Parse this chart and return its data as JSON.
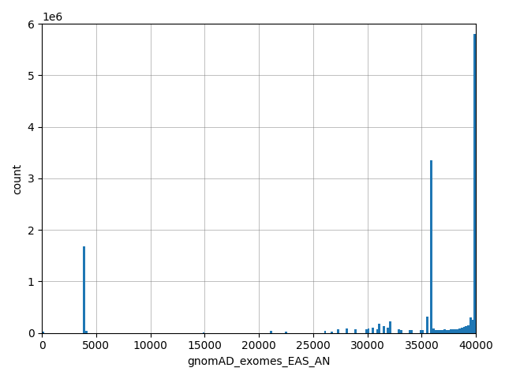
{
  "xlabel": "gnomAD_exomes_EAS_AN",
  "ylabel": "count",
  "bar_color": "#1f77b4",
  "xlim": [
    0,
    40000
  ],
  "ylim": [
    0,
    6000000
  ],
  "figsize": [
    6.4,
    4.8
  ],
  "dpi": 100,
  "bins": 200,
  "bin_width": 200,
  "bin_centers_counts": [
    [
      100,
      30000
    ],
    [
      3900,
      1680000
    ],
    [
      4100,
      40000
    ],
    [
      14900,
      4000
    ],
    [
      21100,
      40000
    ],
    [
      22500,
      25000
    ],
    [
      26100,
      40000
    ],
    [
      26700,
      25000
    ],
    [
      27300,
      70000
    ],
    [
      28100,
      90000
    ],
    [
      28900,
      70000
    ],
    [
      29900,
      80000
    ],
    [
      30100,
      90000
    ],
    [
      30500,
      100000
    ],
    [
      30900,
      80000
    ],
    [
      31100,
      180000
    ],
    [
      31500,
      140000
    ],
    [
      31900,
      110000
    ],
    [
      32100,
      230000
    ],
    [
      32900,
      70000
    ],
    [
      33100,
      55000
    ],
    [
      33900,
      50000
    ],
    [
      34100,
      55000
    ],
    [
      34900,
      55000
    ],
    [
      35100,
      55000
    ],
    [
      35500,
      320000
    ],
    [
      35900,
      3350000
    ],
    [
      36100,
      90000
    ],
    [
      36300,
      60000
    ],
    [
      36500,
      60000
    ],
    [
      36700,
      55000
    ],
    [
      36900,
      60000
    ],
    [
      37100,
      65000
    ],
    [
      37300,
      55000
    ],
    [
      37500,
      60000
    ],
    [
      37700,
      65000
    ],
    [
      37900,
      70000
    ],
    [
      38100,
      75000
    ],
    [
      38300,
      80000
    ],
    [
      38500,
      90000
    ],
    [
      38700,
      100000
    ],
    [
      38900,
      120000
    ],
    [
      39100,
      130000
    ],
    [
      39300,
      150000
    ],
    [
      39500,
      300000
    ],
    [
      39700,
      250000
    ],
    [
      39900,
      5800000
    ]
  ]
}
